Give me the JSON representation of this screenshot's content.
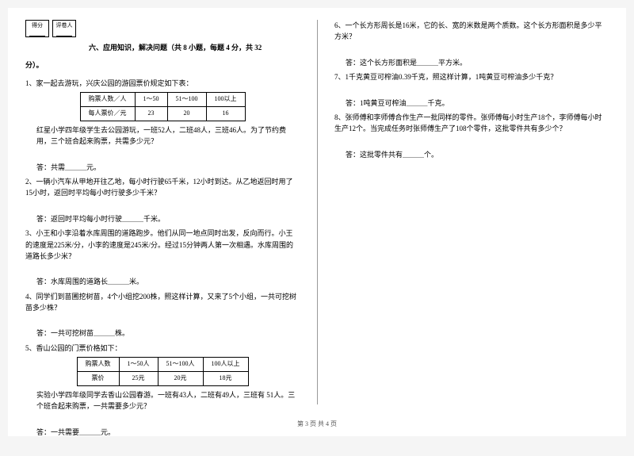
{
  "scorebox": {
    "c1": "得分",
    "c2": "评卷人"
  },
  "section": {
    "title": "六、应用知识，解决问题（共 8 小题，每题 4 分，共 32",
    "cont": "分）。"
  },
  "q1": {
    "text": "1、家一起去游玩，兴庆公园的游园票价规定如下表：",
    "table": {
      "headers": [
        "购票人数／人",
        "1～50",
        "51～100",
        "100以上"
      ],
      "row": [
        "每人票价／元",
        "23",
        "20",
        "16"
      ]
    },
    "body": "红星小学四年级学生去公园游玩，一班52人，二班48人，三班46人。为了节约费用，三个班合起来购票，共需多少元？",
    "ans": "答：共需＿＿＿元。"
  },
  "q2": {
    "text": "2、一辆小汽车从甲地开往乙地，每小时行驶65千米，12小时到达。从乙地返回时用了15小时，返回时平均每小时行驶多少千米？",
    "ans": "答：返回时平均每小时行驶＿＿＿千米。"
  },
  "q3": {
    "text": "3、小王和小李沿着水库周围的道路跑步。他们从同一地点同时出发，反向而行。小王的速度是225米/分，小李的速度是245米/分。经过15分钟两人第一次相遇。水库周围的道路长多少米？",
    "ans": "答：水库周围的道路长＿＿＿米。"
  },
  "q4": {
    "text": "4、同学们到苗圃挖树苗，4个小组挖200株，照这样计算，又来了5个小组，一共可挖树苗多少株？",
    "ans": "答：一共可挖树苗＿＿＿株。"
  },
  "q5": {
    "text": "5、香山公园的门票价格如下：",
    "table": {
      "headers": [
        "购票人数",
        "1～50人",
        "51～100人",
        "100人以上"
      ],
      "row": [
        "票价",
        "25元",
        "20元",
        "18元"
      ]
    },
    "body": "实验小学四年级同学去香山公园春游。一班有43人，二班有49人，三班有 51人。三个班合起来购票，一共需要多少元？",
    "ans": "答：一共需要＿＿＿元。"
  },
  "q6": {
    "text": "6、一个长方形周长是16米，它的长、宽的米数是两个质数。这个长方形面积是多少平方米？",
    "ans": "答：这个长方形面积是＿＿＿平方米。"
  },
  "q7": {
    "text": "7、1千克黄豆可榨油0.39千克，照这样计算，1吨黄豆可榨油多少千克？",
    "ans": "答：1吨黄豆可榨油＿＿＿千克。"
  },
  "q8": {
    "text": "8、张师傅和李师傅合作生产一批同样的零件。张师傅每小时生产18个，李师傅每小时生产12个。当完成任务时张师傅生产了108个零件，这批零件共有多少个？",
    "ans": "答：这批零件共有＿＿＿个。"
  },
  "footer": "第 3 页 共 4 页"
}
